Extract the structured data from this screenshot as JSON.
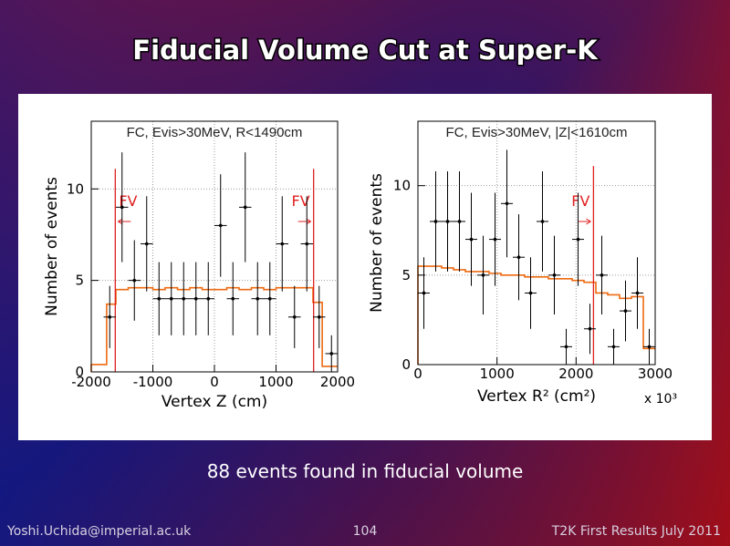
{
  "slide": {
    "title": "Fiducial Volume Cut at Super-K",
    "caption": "88 events found in fiducial volume",
    "footer_left": "Yoshi.Uchida@imperial.ac.uk",
    "footer_center": "104",
    "footer_right": "T2K First Results July 2011"
  },
  "chart_data": [
    {
      "type": "errorbar",
      "title": "FC, Evis>30MeV, R<1490cm",
      "xlabel": "Vertex Z (cm)",
      "ylabel": "Number of events",
      "xlim": [
        -2000,
        2000
      ],
      "ylim": [
        0,
        13.7
      ],
      "xticks": [
        -2000,
        -1000,
        0,
        1000,
        2000
      ],
      "yticks": [
        0,
        5,
        10
      ],
      "grid": true,
      "points": {
        "color": "#000000",
        "xerror": 100,
        "x": [
          -1700,
          -1500,
          -1300,
          -1100,
          -900,
          -700,
          -500,
          -300,
          -100,
          100,
          300,
          500,
          700,
          900,
          1100,
          1300,
          1500,
          1700,
          1900
        ],
        "values": [
          3,
          9,
          5,
          7,
          4,
          4,
          4,
          4,
          4,
          8,
          4,
          9,
          4,
          4,
          7,
          3,
          7,
          3,
          1
        ],
        "errors": [
          1.7,
          3,
          2.2,
          2.6,
          2,
          2,
          2,
          2,
          2,
          2.8,
          2,
          3,
          2,
          2,
          2.6,
          1.7,
          2.6,
          1.7,
          1
        ]
      },
      "mc": {
        "color": "#ee6a10",
        "bins": [
          -2000,
          -1750,
          -1600,
          -1400,
          -1200,
          -1000,
          -800,
          -600,
          -400,
          -200,
          0,
          200,
          400,
          600,
          800,
          1000,
          1200,
          1400,
          1600,
          1750,
          2000
        ],
        "values": [
          0.4,
          3.7,
          4.5,
          4.6,
          4.6,
          4.5,
          4.6,
          4.5,
          4.6,
          4.5,
          4.5,
          4.6,
          4.5,
          4.6,
          4.5,
          4.6,
          4.6,
          4.6,
          3.8,
          0.3
        ]
      },
      "cut_lines": [
        {
          "x": -1610,
          "label": "FV",
          "color": "#e02020"
        },
        {
          "x": 1610,
          "label": "FV",
          "color": "#e02020"
        }
      ]
    },
    {
      "type": "errorbar",
      "title": "FC, Evis>30MeV, |Z|<1610cm",
      "xlabel": "Vertex R² (cm²)",
      "ylabel": "Number of events",
      "x_scale_note": "x 10³",
      "xlim": [
        0,
        3000
      ],
      "ylim": [
        0,
        13.6
      ],
      "xticks": [
        0,
        1000,
        2000,
        3000
      ],
      "yticks": [
        0,
        5,
        10
      ],
      "grid": true,
      "points": {
        "color": "#000000",
        "xerror": 75,
        "x": [
          75,
          225,
          375,
          525,
          675,
          825,
          975,
          1125,
          1275,
          1425,
          1575,
          1725,
          1875,
          2025,
          2175,
          2325,
          2475,
          2625,
          2775,
          2925
        ],
        "values": [
          4,
          8,
          8,
          8,
          7,
          5,
          7,
          9,
          6,
          4,
          8,
          5,
          1,
          7,
          2,
          5,
          1,
          3,
          4,
          1
        ],
        "errors": [
          2,
          2.8,
          2.8,
          2.8,
          2.6,
          2.2,
          2.6,
          3,
          2.4,
          2,
          2.8,
          2.2,
          1,
          2.6,
          1.4,
          2.2,
          1,
          1.7,
          2,
          1
        ]
      },
      "mc": {
        "color": "#ee6a10",
        "bins": [
          0,
          150,
          300,
          450,
          600,
          750,
          900,
          1050,
          1200,
          1350,
          1500,
          1650,
          1800,
          1950,
          2100,
          2250,
          2400,
          2550,
          2700,
          2850,
          3000
        ],
        "values": [
          5.5,
          5.5,
          5.4,
          5.3,
          5.2,
          5.2,
          5.1,
          5.0,
          5.0,
          4.9,
          4.9,
          4.8,
          4.8,
          4.7,
          4.6,
          4.0,
          3.9,
          3.7,
          3.8,
          0.9
        ]
      },
      "cut_lines": [
        {
          "x": 2220,
          "label": "FV",
          "color": "#e02020"
        }
      ]
    }
  ]
}
